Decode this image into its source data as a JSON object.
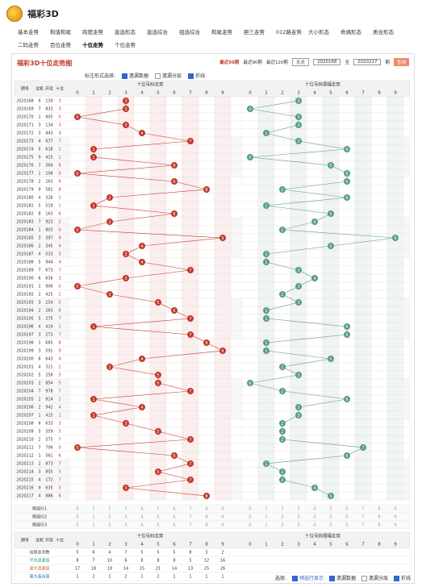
{
  "header": {
    "logo": "福彩3D"
  },
  "nav": [
    "基本走势",
    "和值和尾",
    "跨度走势",
    "直选形态",
    "直选综合",
    "组选综合",
    "和尾走势",
    "胆三走势",
    "012路走势",
    "大小形态",
    "奇偶形态",
    "质合形态",
    "二码走势",
    "百位走势",
    "十位走势",
    "个位走势"
  ],
  "panel": {
    "title": "福彩3D十位走势图",
    "periods": [
      "最近50期",
      "最近90期",
      "最近120期"
    ],
    "select": "天天",
    "from": "2020168",
    "to_label": "至",
    "to": "2020217",
    "unit": "期",
    "query": "查询",
    "mark_label": "标注形式选择:",
    "options": [
      "遗漏数据",
      "遗漏分层",
      "折线"
    ]
  },
  "table": {
    "headers": {
      "issue": "期号",
      "test": "试机",
      "prize": "开奖",
      "tens": "十位",
      "grid1": "十位号码走势",
      "grid2": "十位号码振幅走势"
    },
    "digits": [
      "0",
      "1",
      "2",
      "3",
      "4",
      "5",
      "6",
      "7",
      "8",
      "9"
    ],
    "rows": [
      {
        "issue": "2020168",
        "test": "6",
        "prize": "130",
        "tens": 3,
        "amp": 3
      },
      {
        "issue": "2020169",
        "test": "7",
        "prize": "833",
        "tens": 3,
        "amp": 0
      },
      {
        "issue": "2020170",
        "test": "1",
        "prize": "805",
        "tens": 0,
        "amp": 3
      },
      {
        "issue": "2020171",
        "test": "3",
        "prize": "134",
        "tens": 3,
        "amp": 3
      },
      {
        "issue": "2020172",
        "test": "3",
        "prize": "443",
        "tens": 4,
        "amp": 1
      },
      {
        "issue": "2020173",
        "test": "4",
        "prize": "677",
        "tens": 7,
        "amp": 3
      },
      {
        "issue": "2020174",
        "test": "5",
        "prize": "618",
        "tens": 1,
        "amp": 6
      },
      {
        "issue": "2020175",
        "test": "9",
        "prize": "415",
        "tens": 1,
        "amp": 0
      },
      {
        "issue": "2020176",
        "test": "7",
        "prize": "369",
        "tens": 6,
        "amp": 5
      },
      {
        "issue": "2020177",
        "test": "1",
        "prize": "108",
        "tens": 0,
        "amp": 6
      },
      {
        "issue": "2020178",
        "test": "2",
        "prize": "263",
        "tens": 6,
        "amp": 6
      },
      {
        "issue": "2020179",
        "test": "9",
        "prize": "581",
        "tens": 8,
        "amp": 2
      },
      {
        "issue": "2020180",
        "test": "4",
        "prize": "326",
        "tens": 2,
        "amp": 6
      },
      {
        "issue": "2020181",
        "test": "5",
        "prize": "519",
        "tens": 1,
        "amp": 1
      },
      {
        "issue": "2020182",
        "test": "8",
        "prize": "163",
        "tens": 6,
        "amp": 5
      },
      {
        "issue": "2020183",
        "test": "7",
        "prize": "923",
        "tens": 2,
        "amp": 4
      },
      {
        "issue": "2020184",
        "test": "1",
        "prize": "803",
        "tens": 0,
        "amp": 2
      },
      {
        "issue": "2020185",
        "test": "3",
        "prize": "397",
        "tens": 9,
        "amp": 9
      },
      {
        "issue": "2020186",
        "test": "2",
        "prize": "345",
        "tens": 4,
        "amp": 5
      },
      {
        "issue": "2020187",
        "test": "4",
        "prize": "033",
        "tens": 3,
        "amp": 1
      },
      {
        "issue": "2020188",
        "test": "5",
        "prize": "944",
        "tens": 4,
        "amp": 1
      },
      {
        "issue": "2020189",
        "test": "7",
        "prize": "673",
        "tens": 7,
        "amp": 3
      },
      {
        "issue": "2020190",
        "test": "6",
        "prize": "636",
        "tens": 3,
        "amp": 4
      },
      {
        "issue": "2020191",
        "test": "1",
        "prize": "906",
        "tens": 0,
        "amp": 3
      },
      {
        "issue": "2020192",
        "test": "2",
        "prize": "425",
        "tens": 2,
        "amp": 2
      },
      {
        "issue": "2020193",
        "test": "3",
        "prize": "254",
        "tens": 5,
        "amp": 3
      },
      {
        "issue": "2020194",
        "test": "2",
        "prize": "263",
        "tens": 6,
        "amp": 1
      },
      {
        "issue": "2020195",
        "test": "5",
        "prize": "275",
        "tens": 7,
        "amp": 1
      },
      {
        "issue": "2020196",
        "test": "4",
        "prize": "419",
        "tens": 1,
        "amp": 6
      },
      {
        "issue": "2020197",
        "test": "3",
        "prize": "273",
        "tens": 7,
        "amp": 6
      },
      {
        "issue": "2020198",
        "test": "1",
        "prize": "685",
        "tens": 8,
        "amp": 1
      },
      {
        "issue": "2020199",
        "test": "3",
        "prize": "591",
        "tens": 9,
        "amp": 1
      },
      {
        "issue": "2020200",
        "test": "6",
        "prize": "643",
        "tens": 4,
        "amp": 5
      },
      {
        "issue": "2020201",
        "test": "4",
        "prize": "321",
        "tens": 2,
        "amp": 2
      },
      {
        "issue": "2020202",
        "test": "5",
        "prize": "258",
        "tens": 5,
        "amp": 3
      },
      {
        "issue": "2020203",
        "test": "2",
        "prize": "854",
        "tens": 5,
        "amp": 0
      },
      {
        "issue": "2020204",
        "test": "7",
        "prize": "978",
        "tens": 7,
        "amp": 2
      },
      {
        "issue": "2020205",
        "test": "1",
        "prize": "814",
        "tens": 1,
        "amp": 6
      },
      {
        "issue": "2020206",
        "test": "2",
        "prize": "942",
        "tens": 4,
        "amp": 3
      },
      {
        "issue": "2020207",
        "test": "1",
        "prize": "415",
        "tens": 1,
        "amp": 3
      },
      {
        "issue": "2020208",
        "test": "6",
        "prize": "633",
        "tens": 3,
        "amp": 2
      },
      {
        "issue": "2020209",
        "test": "5",
        "prize": "359",
        "tens": 5,
        "amp": 2
      },
      {
        "issue": "2020210",
        "test": "2",
        "prize": "575",
        "tens": 7,
        "amp": 2
      },
      {
        "issue": "2020211",
        "test": "7",
        "prize": "706",
        "tens": 0,
        "amp": 7
      },
      {
        "issue": "2020212",
        "test": "1",
        "prize": "561",
        "tens": 6,
        "amp": 6
      },
      {
        "issue": "2020213",
        "test": "2",
        "prize": "873",
        "tens": 7,
        "amp": 1
      },
      {
        "issue": "2020214",
        "test": "3",
        "prize": "855",
        "tens": 5,
        "amp": 2
      },
      {
        "issue": "2020215",
        "test": "4",
        "prize": "172",
        "tens": 7,
        "amp": 2
      },
      {
        "issue": "2020216",
        "test": "9",
        "prize": "635",
        "tens": 3,
        "amp": 4
      },
      {
        "issue": "2020217",
        "test": "4",
        "prize": "886",
        "tens": 8,
        "amp": 5
      }
    ],
    "preselect": [
      "预选行1",
      "预选行2",
      "预选行3"
    ],
    "stats": [
      {
        "label": "出现总次数",
        "values": [
          5,
          6,
          4,
          7,
          5,
          5,
          5,
          8,
          3,
          2
        ]
      },
      {
        "label": "平均遗漏值",
        "values": [
          8,
          7,
          10,
          6,
          8,
          8,
          8,
          5,
          12,
          16
        ]
      },
      {
        "label": "最大遗漏值",
        "values": [
          17,
          18,
          19,
          14,
          15,
          21,
          14,
          13,
          25,
          26
        ]
      },
      {
        "label": "最大连出值",
        "values": [
          1,
          2,
          1,
          2,
          1,
          2,
          1,
          1,
          1,
          1
        ]
      }
    ]
  },
  "footer": {
    "label": "选择:",
    "options": [
      "预选行显示",
      "遗漏数据",
      "遗漏分层",
      "折线"
    ]
  }
}
